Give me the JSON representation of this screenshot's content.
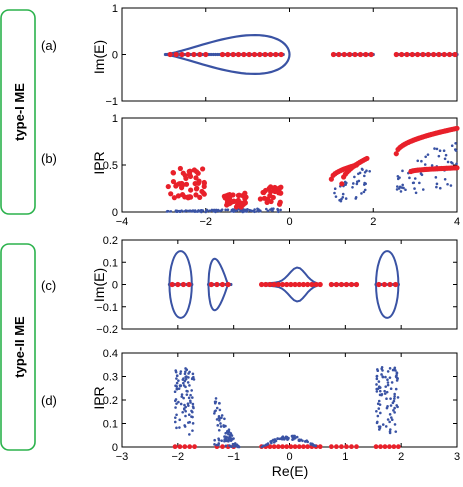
{
  "labels": {
    "type1": "type-I ME",
    "type2": "type-II ME",
    "a": "(a)",
    "b": "(b)",
    "c": "(c)",
    "d": "(d)",
    "ylabel_im": "Im(E)",
    "ylabel_ipr": "IPR",
    "xlabel": "Re(E)"
  },
  "colors": {
    "blue": "#3a53a4",
    "red": "#e8202a",
    "badge": "#2bb24c"
  },
  "chart_data": [
    {
      "id": "a",
      "type": "scatter",
      "ylabel": "Im(E)",
      "xlim": [
        -4,
        4
      ],
      "ylim": [
        -1,
        1
      ],
      "xticks": [],
      "yticks": [
        -1,
        0,
        1
      ],
      "loop": {
        "kind": "drop",
        "tip": -3.0,
        "right": 0.0,
        "halfheight": 0.6
      },
      "blue_segments": [
        [
          -2.95,
          -0.15
        ],
        [
          1.05,
          2.0
        ],
        [
          2.55,
          4.0
        ]
      ],
      "red_segments": [
        [
          -2.85,
          -2.0
        ],
        [
          -1.6,
          -0.2
        ],
        [
          1.05,
          1.95
        ],
        [
          2.55,
          3.95
        ]
      ]
    },
    {
      "id": "b",
      "type": "scatter",
      "ylabel": "IPR",
      "xlim": [
        -4,
        4
      ],
      "ylim": [
        0,
        1
      ],
      "xticks": [
        -4,
        -2,
        0,
        2,
        4
      ],
      "yticks": [
        0,
        0.5,
        1
      ],
      "red_clusters": [
        {
          "x": [
            -2.9,
            -2.0
          ],
          "y": [
            0.15,
            0.47
          ]
        },
        {
          "x": [
            -1.6,
            -1.0
          ],
          "y": [
            0.05,
            0.2
          ]
        },
        {
          "x": [
            -0.7,
            -0.2
          ],
          "y": [
            0.08,
            0.27
          ]
        }
      ],
      "red_curves": [
        {
          "x": [
            1.25,
            1.85
          ],
          "y": [
            0.3,
            0.57
          ]
        },
        {
          "x": [
            1.0,
            1.6
          ],
          "y": [
            0.35,
            0.5
          ]
        },
        {
          "x": [
            2.55,
            4.0
          ],
          "y": [
            0.62,
            0.89
          ]
        },
        {
          "x": [
            2.9,
            4.0
          ],
          "y": [
            0.43,
            0.47
          ]
        }
      ],
      "blue_clusters": [
        {
          "x": [
            -2.95,
            -0.2
          ],
          "y": [
            0.0,
            0.04
          ]
        },
        {
          "x": [
            1.05,
            2.0
          ],
          "y": [
            0.1,
            0.55
          ]
        },
        {
          "x": [
            2.55,
            4.0
          ],
          "y": [
            0.2,
            0.85
          ]
        }
      ]
    },
    {
      "id": "c",
      "type": "scatter",
      "ylabel": "Im(E)",
      "xlim": [
        -3,
        3
      ],
      "ylim": [
        -0.2,
        0.2
      ],
      "xticks": [],
      "yticks": [
        -0.2,
        -0.1,
        0,
        0.1,
        0.2
      ],
      "loops": [
        {
          "kind": "ellipse",
          "cx": -1.95,
          "rx": 0.2,
          "ry": 0.15
        },
        {
          "kind": "teardrop",
          "x0": -1.45,
          "x1": -1.1,
          "ry": 0.12
        },
        {
          "kind": "bulb",
          "x0": -0.5,
          "x1": 0.55,
          "ry": 0.07
        },
        {
          "kind": "ellipse",
          "cx": 1.75,
          "rx": 0.2,
          "ry": 0.15
        }
      ],
      "red_segments": [
        [
          -2.1,
          -1.8
        ],
        [
          -1.4,
          -1.1
        ],
        [
          -0.5,
          0.55
        ],
        [
          0.75,
          1.2
        ],
        [
          1.6,
          1.9
        ]
      ],
      "blue_segments": [
        [
          -2.15,
          -1.75
        ],
        [
          -1.45,
          -1.05
        ],
        [
          -0.5,
          0.55
        ],
        [
          0.75,
          1.2
        ],
        [
          1.55,
          1.95
        ]
      ]
    },
    {
      "id": "d",
      "type": "scatter",
      "ylabel": "IPR",
      "xlabel": "Re(E)",
      "xlim": [
        -3,
        3
      ],
      "ylim": [
        0,
        0.4
      ],
      "xticks": [
        -3,
        -2,
        -1,
        0,
        1,
        2,
        3
      ],
      "yticks": [
        0,
        0.1,
        0.2,
        0.3,
        0.4
      ],
      "blue_clusters": [
        {
          "x": [
            -2.05,
            -1.7
          ],
          "y": [
            0.05,
            0.34
          ]
        },
        {
          "x": [
            -1.35,
            -0.9
          ],
          "y": [
            0.0,
            0.26
          ]
        },
        {
          "x": [
            -0.5,
            0.5
          ],
          "y": [
            0.0,
            0.05
          ]
        },
        {
          "x": [
            1.55,
            1.95
          ],
          "y": [
            0.05,
            0.34
          ]
        }
      ],
      "red_segments": [
        [
          -2.05,
          -1.7
        ],
        [
          -1.3,
          -1.0
        ],
        [
          -0.5,
          0.55
        ],
        [
          0.75,
          1.2
        ],
        [
          1.55,
          1.95
        ]
      ]
    }
  ]
}
